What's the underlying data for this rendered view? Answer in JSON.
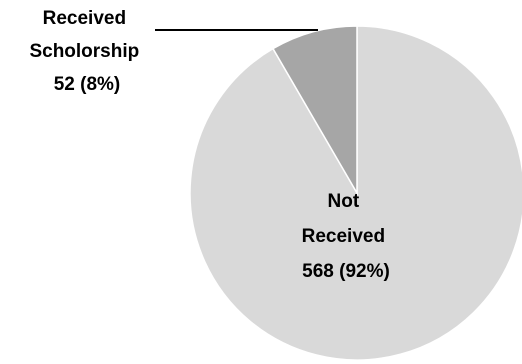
{
  "chart_data": {
    "type": "pie",
    "title": "",
    "slices": [
      {
        "label_lines": [
          "Not",
          "Received",
          "568 (92%)"
        ],
        "value": 568,
        "percent": 92,
        "color": "#d9d9d9"
      },
      {
        "label_lines": [
          "Received",
          "Scholorship",
          "52 (8%)"
        ],
        "value": 52,
        "percent": 8,
        "color": "#a6a6a6"
      }
    ],
    "legend": "none",
    "start": "top, clockwise"
  }
}
